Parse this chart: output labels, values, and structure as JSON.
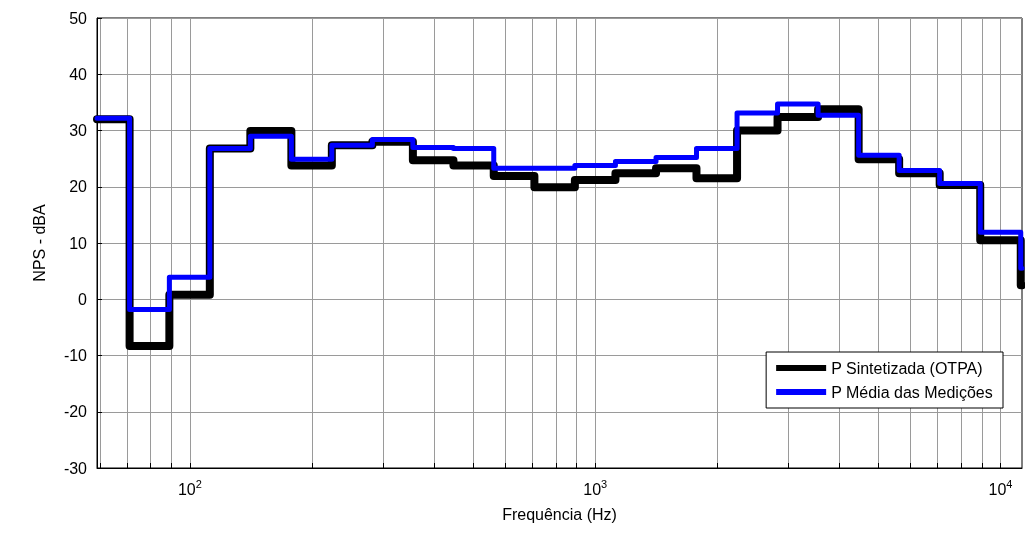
{
  "chart_data": {
    "type": "step",
    "xlabel": "Frequência (Hz)",
    "ylabel": "NPS - dBA",
    "x": [
      59,
      71,
      89,
      112,
      141,
      178,
      224,
      282,
      355,
      447,
      562,
      708,
      891,
      1122,
      1413,
      1778,
      2239,
      2818,
      3548,
      4467,
      5623,
      7079,
      8913,
      11220
    ],
    "series": [
      {
        "name": "P Sintetizada (OTPA)",
        "color": "#000000",
        "values": [
          32,
          -8.3,
          0.8,
          26.8,
          29.9,
          23.8,
          27.4,
          28,
          24.7,
          23.8,
          21.9,
          19.9,
          21.2,
          22.4,
          23.3,
          21.5,
          30,
          32.4,
          33.8,
          24.9,
          22.4,
          20.3,
          10.5,
          2.5
        ]
      },
      {
        "name": "P Média das Medições",
        "color": "#0000ff",
        "values": [
          32.2,
          -1.8,
          3.9,
          26.8,
          29,
          24.9,
          27.4,
          28.4,
          27,
          26.8,
          23.3,
          23.3,
          23.8,
          24.5,
          25.2,
          26.8,
          33.1,
          34.7,
          32.7,
          25.6,
          22.9,
          20.6,
          11.9,
          5.5
        ]
      }
    ],
    "log": "x",
    "xlim": [
      59,
      11300
    ],
    "xticks": [
      {
        "value": 60,
        "label": null
      },
      {
        "value": 70,
        "label": null
      },
      {
        "value": 80,
        "label": null
      },
      {
        "value": 90,
        "label": null
      },
      {
        "value": 100,
        "label": "10$^{2}$"
      },
      {
        "value": 200,
        "label": null
      },
      {
        "value": 300,
        "label": null
      },
      {
        "value": 400,
        "label": null
      },
      {
        "value": 500,
        "label": null
      },
      {
        "value": 600,
        "label": null
      },
      {
        "value": 700,
        "label": null
      },
      {
        "value": 800,
        "label": null
      },
      {
        "value": 900,
        "label": null
      },
      {
        "value": 1000,
        "label": "10$^{3}$"
      },
      {
        "value": 2000,
        "label": null
      },
      {
        "value": 3000,
        "label": null
      },
      {
        "value": 4000,
        "label": null
      },
      {
        "value": 5000,
        "label": null
      },
      {
        "value": 6000,
        "label": null
      },
      {
        "value": 7000,
        "label": null
      },
      {
        "value": 8000,
        "label": null
      },
      {
        "value": 9000,
        "label": null
      },
      {
        "value": 10000,
        "label": "10$^{4}$"
      }
    ],
    "ylim": [
      -30,
      50
    ],
    "yticks": [
      -30,
      -20,
      -10,
      0,
      10,
      20,
      30,
      40,
      50
    ],
    "grid": true,
    "legend": "bottom right",
    "line_style": "solid",
    "marker": "none"
  }
}
